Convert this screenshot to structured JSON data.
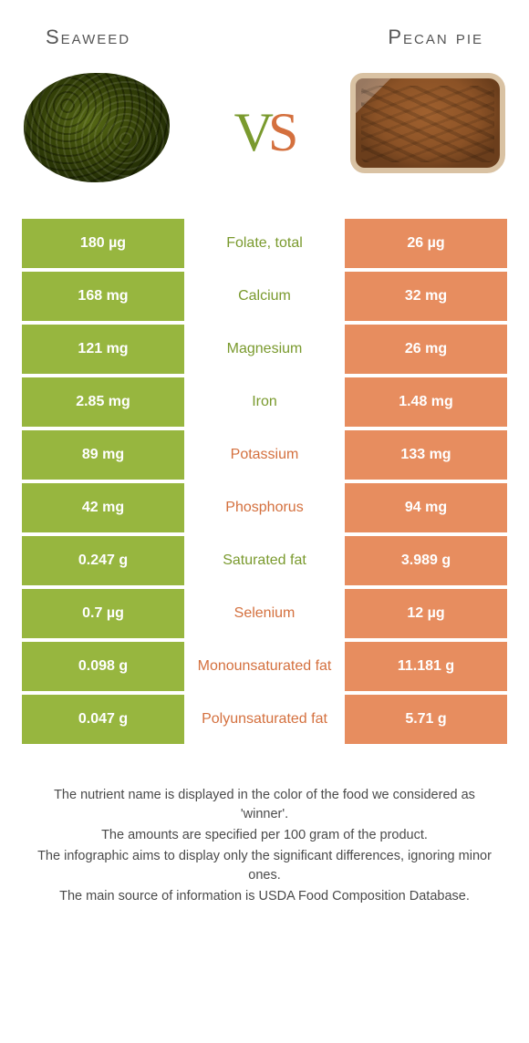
{
  "colors": {
    "green": "#97b63f",
    "orange": "#e78d5f",
    "green_text": "#7a9a2e",
    "orange_text": "#d4703e"
  },
  "header": {
    "left": "Seaweed",
    "right": "Pecan pie"
  },
  "vs": {
    "v": "V",
    "s": "S"
  },
  "rows": [
    {
      "left": "180 µg",
      "label": "Folate, total",
      "right": "26 µg",
      "winner": "left"
    },
    {
      "left": "168 mg",
      "label": "Calcium",
      "right": "32 mg",
      "winner": "left"
    },
    {
      "left": "121 mg",
      "label": "Magnesium",
      "right": "26 mg",
      "winner": "left"
    },
    {
      "left": "2.85 mg",
      "label": "Iron",
      "right": "1.48 mg",
      "winner": "left"
    },
    {
      "left": "89 mg",
      "label": "Potassium",
      "right": "133 mg",
      "winner": "right"
    },
    {
      "left": "42 mg",
      "label": "Phosphorus",
      "right": "94 mg",
      "winner": "right"
    },
    {
      "left": "0.247 g",
      "label": "Saturated fat",
      "right": "3.989 g",
      "winner": "left"
    },
    {
      "left": "0.7 µg",
      "label": "Selenium",
      "right": "12 µg",
      "winner": "right"
    },
    {
      "left": "0.098 g",
      "label": "Monounsaturated fat",
      "right": "11.181 g",
      "winner": "right"
    },
    {
      "left": "0.047 g",
      "label": "Polyunsaturated fat",
      "right": "5.71 g",
      "winner": "right"
    }
  ],
  "footer": {
    "line1": "The nutrient name is displayed in the color of the food we considered as 'winner'.",
    "line2": "The amounts are specified per 100 gram of the product.",
    "line3": "The infographic aims to display only the significant differences, ignoring minor ones.",
    "line4": "The main source of information is USDA Food Composition Database."
  }
}
